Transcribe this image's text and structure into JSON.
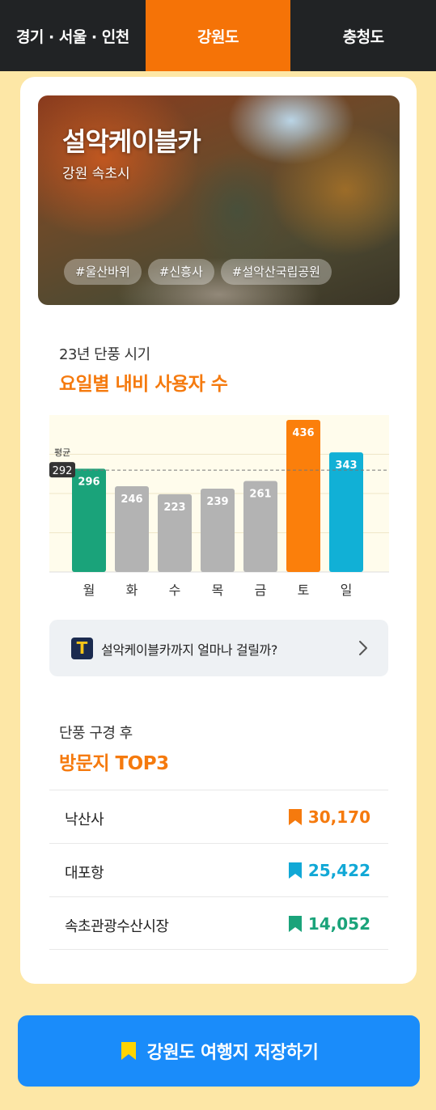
{
  "tabs": [
    {
      "label": "경기 · 서울 · 인천",
      "active": false
    },
    {
      "label": "강원도",
      "active": true
    },
    {
      "label": "충청도",
      "active": false
    }
  ],
  "hero": {
    "title": "설악케이블카",
    "location": "강원 속초시",
    "tags": [
      "#울산바위",
      "#신흥사",
      "#설악산국립공원"
    ]
  },
  "chart_section": {
    "subtitle": "23년 단풍 시기",
    "title": "요일별 내비 사용자 수"
  },
  "chart_data": {
    "type": "bar",
    "categories": [
      "월",
      "화",
      "수",
      "목",
      "금",
      "토",
      "일"
    ],
    "values": [
      296,
      246,
      223,
      239,
      261,
      436,
      343
    ],
    "average": {
      "label": "평균",
      "value": 292
    },
    "colors": [
      "#1aa37a",
      "#b3b3b3",
      "#b3b3b3",
      "#b3b3b3",
      "#b3b3b3",
      "#fb7f0b",
      "#11b0d6"
    ],
    "ylim": [
      0,
      450
    ],
    "grid": true
  },
  "route": {
    "logo_icon": "tmap-icon",
    "logo_glyph": "T",
    "text": "설악케이블카까지 얼마나 걸릴까?"
  },
  "top3_section": {
    "subtitle": "단풍 구경 후",
    "title": "방문지 TOP3",
    "items": [
      {
        "name": "낙산사",
        "value": "30,170",
        "color": "#f57a0e"
      },
      {
        "name": "대포항",
        "value": "25,422",
        "color": "#11a8d6"
      },
      {
        "name": "속초관광수산시장",
        "value": "14,052",
        "color": "#1aa37a"
      }
    ]
  },
  "save_button": {
    "label": "강원도 여행지 저장하기",
    "icon_color": "#ffd400"
  }
}
